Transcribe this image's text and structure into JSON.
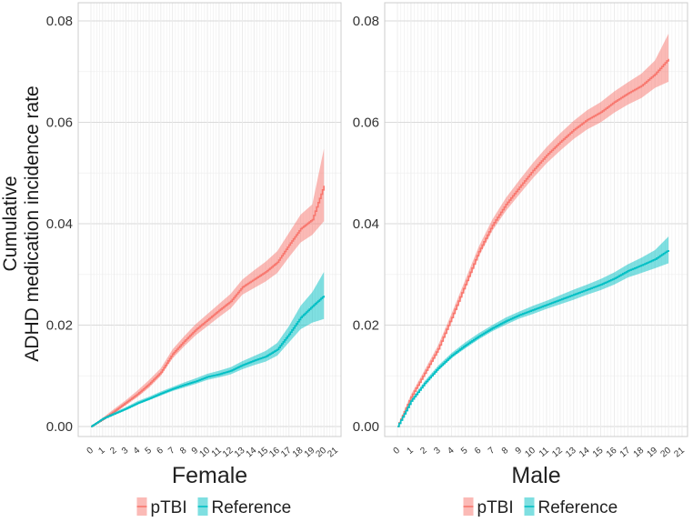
{
  "chart_data": {
    "type": "line",
    "ylabel_line1": "Cumulative",
    "ylabel_line2": "ADHD medication incidence rate",
    "yticks": [
      "0.00",
      "0.02",
      "0.04",
      "0.06",
      "0.08"
    ],
    "ytick_values": [
      0,
      0.02,
      0.04,
      0.06,
      0.08
    ],
    "ylim": [
      0,
      0.08
    ],
    "xlim": [
      0,
      21
    ],
    "xticks": [
      "0",
      "1",
      "2",
      "3",
      "4",
      "5",
      "6",
      "7",
      "8",
      "9",
      "10",
      "11",
      "12",
      "13",
      "14",
      "15",
      "16",
      "17",
      "18",
      "19",
      "20",
      "21"
    ],
    "x": [
      0,
      1,
      2,
      3,
      4,
      5,
      6,
      7,
      8,
      9,
      10,
      11,
      12,
      13,
      14,
      15,
      16,
      17,
      18,
      19,
      20
    ],
    "colors": {
      "pTBI": "#F8766D",
      "Reference": "#00BFC4"
    },
    "legend": [
      "pTBI",
      "Reference"
    ],
    "panels": [
      {
        "title": "Female",
        "series": [
          {
            "name": "pTBI",
            "values": [
              0,
              0.0014,
              0.003,
              0.0047,
              0.0064,
              0.0084,
              0.0107,
              0.0143,
              0.0168,
              0.0191,
              0.021,
              0.0229,
              0.0247,
              0.0275,
              0.029,
              0.0305,
              0.0324,
              0.0358,
              0.039,
              0.0408,
              0.0475
            ],
            "lower": [
              0,
              0.0011,
              0.0026,
              0.0042,
              0.0058,
              0.0077,
              0.01,
              0.0134,
              0.0158,
              0.018,
              0.0198,
              0.0216,
              0.0233,
              0.026,
              0.0273,
              0.0286,
              0.0303,
              0.0334,
              0.0363,
              0.0378,
              0.0405
            ],
            "upper": [
              0,
              0.0017,
              0.0035,
              0.0052,
              0.0071,
              0.0092,
              0.0115,
              0.0152,
              0.0178,
              0.0202,
              0.0222,
              0.0242,
              0.0262,
              0.029,
              0.0308,
              0.0325,
              0.0346,
              0.0382,
              0.0418,
              0.0438,
              0.0548
            ]
          },
          {
            "name": "Reference",
            "values": [
              0,
              0.0015,
              0.0025,
              0.0035,
              0.0046,
              0.0055,
              0.0065,
              0.0074,
              0.0082,
              0.0089,
              0.0098,
              0.0103,
              0.011,
              0.0121,
              0.013,
              0.0138,
              0.0152,
              0.0182,
              0.0215,
              0.0237,
              0.0258
            ],
            "lower": [
              0,
              0.0013,
              0.0023,
              0.0032,
              0.0043,
              0.0052,
              0.0061,
              0.007,
              0.0077,
              0.0084,
              0.0092,
              0.0097,
              0.0103,
              0.0113,
              0.0121,
              0.0128,
              0.014,
              0.0166,
              0.0192,
              0.0205,
              0.0212
            ],
            "upper": [
              0,
              0.0017,
              0.0028,
              0.0038,
              0.005,
              0.0059,
              0.0069,
              0.0078,
              0.0087,
              0.0095,
              0.0104,
              0.011,
              0.0117,
              0.0129,
              0.0139,
              0.0149,
              0.0165,
              0.0198,
              0.0238,
              0.0265,
              0.0305
            ]
          }
        ]
      },
      {
        "title": "Male",
        "series": [
          {
            "name": "pTBI",
            "values": [
              0,
              0.0058,
              0.0105,
              0.0153,
              0.0215,
              0.028,
              0.0345,
              0.0397,
              0.0438,
              0.0472,
              0.0505,
              0.0535,
              0.0561,
              0.0585,
              0.0605,
              0.062,
              0.064,
              0.0657,
              0.0672,
              0.0695,
              0.0725
            ],
            "lower": [
              0,
              0.0053,
              0.0099,
              0.0146,
              0.0207,
              0.0271,
              0.0335,
              0.0386,
              0.0425,
              0.0458,
              0.049,
              0.0519,
              0.0544,
              0.0567,
              0.0586,
              0.06,
              0.0619,
              0.0635,
              0.0648,
              0.0668,
              0.068
            ],
            "upper": [
              0,
              0.0063,
              0.0111,
              0.016,
              0.0223,
              0.0289,
              0.0355,
              0.0408,
              0.0451,
              0.0486,
              0.052,
              0.0551,
              0.0578,
              0.0603,
              0.0624,
              0.064,
              0.0661,
              0.0679,
              0.0696,
              0.0722,
              0.0775
            ]
          },
          {
            "name": "Reference",
            "values": [
              0,
              0.005,
              0.0085,
              0.0115,
              0.014,
              0.016,
              0.0178,
              0.0194,
              0.0208,
              0.022,
              0.023,
              0.024,
              0.025,
              0.026,
              0.027,
              0.028,
              0.0292,
              0.0307,
              0.0318,
              0.033,
              0.0348
            ],
            "lower": [
              0,
              0.0047,
              0.0081,
              0.011,
              0.0135,
              0.0154,
              0.0172,
              0.0188,
              0.0201,
              0.0213,
              0.0222,
              0.0232,
              0.0241,
              0.025,
              0.026,
              0.0269,
              0.028,
              0.0294,
              0.0303,
              0.0312,
              0.0322
            ],
            "upper": [
              0,
              0.0053,
              0.0089,
              0.012,
              0.0145,
              0.0166,
              0.0184,
              0.02,
              0.0215,
              0.0227,
              0.0238,
              0.0248,
              0.0259,
              0.027,
              0.028,
              0.0291,
              0.0304,
              0.032,
              0.0333,
              0.0348,
              0.0375
            ]
          }
        ]
      }
    ]
  }
}
